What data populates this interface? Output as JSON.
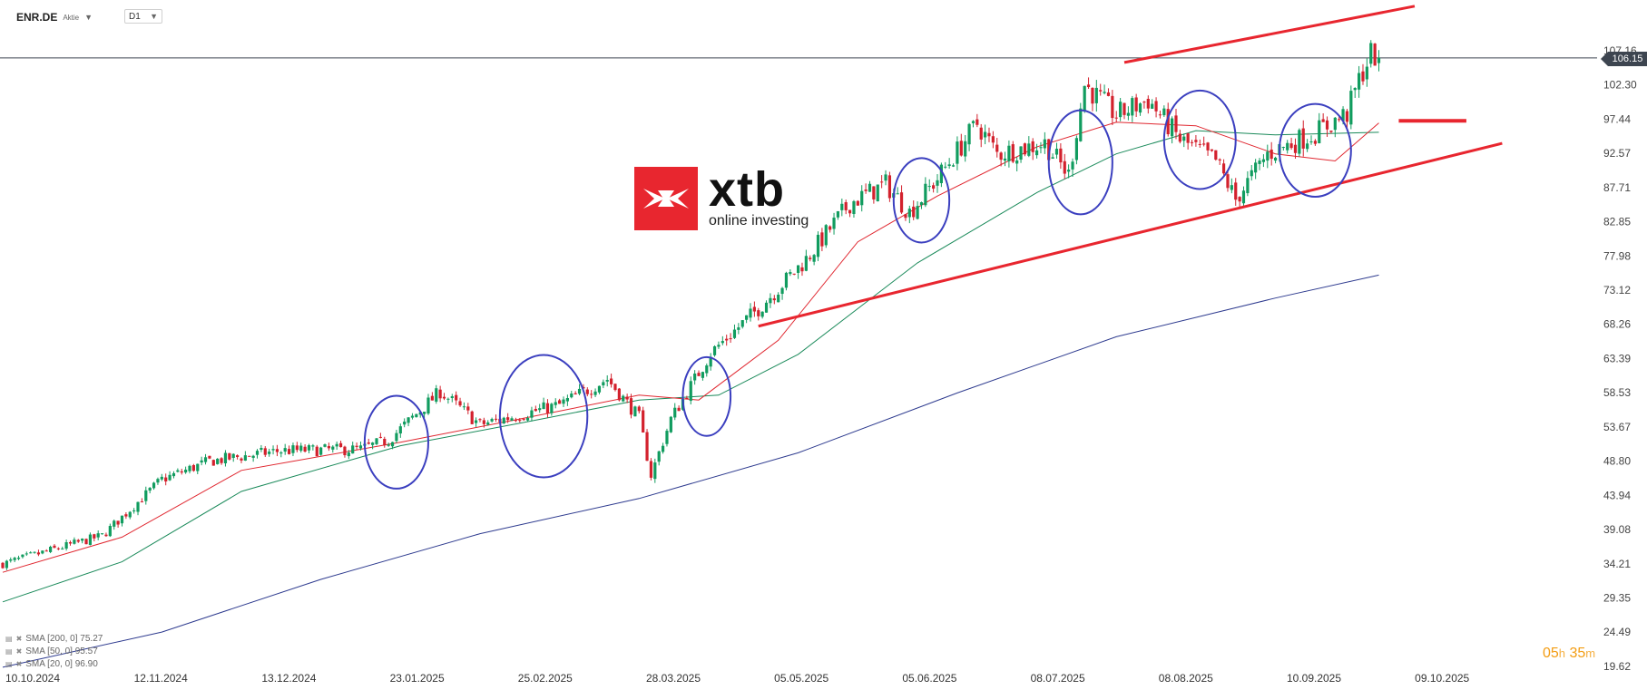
{
  "header": {
    "symbol": "ENR.DE",
    "type_label": "Aktie",
    "timeframe": "D1"
  },
  "logo": {
    "name": "xtb",
    "tagline": "online investing",
    "color": "#e8262f"
  },
  "price_tag": "106.15",
  "countdown": {
    "hours": "05",
    "h_unit": "h",
    "minutes": "35",
    "m_unit": "m"
  },
  "indicators": [
    {
      "label": "SMA  [200,  0]  75.27",
      "color": "#2e3b8f"
    },
    {
      "label": "SMA  [50,  0]  95.57",
      "color": "#1a8a5a"
    },
    {
      "label": "SMA  [20,  0]  96.90",
      "color": "#e0262f"
    }
  ],
  "colors": {
    "bull": "#119c5f",
    "bear": "#d3212d",
    "trendline": "#e8262f",
    "circle": "#3b3fbf",
    "sma200": "#2e3b8f",
    "sma50": "#1a8a5a",
    "sma20": "#e0262f"
  },
  "chart_data": {
    "type": "candlestick",
    "x_tick_labels": [
      "10.10.2024",
      "12.11.2024",
      "13.12.2024",
      "23.01.2025",
      "25.02.2025",
      "28.03.2025",
      "05.05.2025",
      "05.06.2025",
      "08.07.2025",
      "08.08.2025",
      "10.09.2025",
      "09.10.2025"
    ],
    "y_tick_labels": [
      "107.16",
      "102.30",
      "97.44",
      "92.57",
      "87.71",
      "82.85",
      "77.98",
      "73.12",
      "68.26",
      "63.39",
      "58.53",
      "53.67",
      "48.80",
      "43.94",
      "39.08",
      "34.21",
      "29.35",
      "24.49",
      "19.62"
    ],
    "ylim": [
      19.62,
      107.16
    ],
    "close_path": [
      {
        "t": 0,
        "v": 34.2
      },
      {
        "t": 25,
        "v": 38.2
      },
      {
        "t": 40,
        "v": 46.2
      },
      {
        "t": 52,
        "v": 48.8
      },
      {
        "t": 70,
        "v": 50.3
      },
      {
        "t": 90,
        "v": 50.5
      },
      {
        "t": 97,
        "v": 51.8
      },
      {
        "t": 110,
        "v": 58.7
      },
      {
        "t": 120,
        "v": 54.0
      },
      {
        "t": 140,
        "v": 56.8
      },
      {
        "t": 152,
        "v": 60.5
      },
      {
        "t": 160,
        "v": 55.0
      },
      {
        "t": 163,
        "v": 46.8
      },
      {
        "t": 168,
        "v": 54.8
      },
      {
        "t": 178,
        "v": 64.2
      },
      {
        "t": 190,
        "v": 70.5
      },
      {
        "t": 202,
        "v": 77.5
      },
      {
        "t": 213,
        "v": 85.5
      },
      {
        "t": 222,
        "v": 88.2
      },
      {
        "t": 228,
        "v": 84.2
      },
      {
        "t": 235,
        "v": 89.0
      },
      {
        "t": 245,
        "v": 96.8
      },
      {
        "t": 250,
        "v": 92.5
      },
      {
        "t": 262,
        "v": 94.0
      },
      {
        "t": 268,
        "v": 89.5
      },
      {
        "t": 272,
        "v": 102.3
      },
      {
        "t": 280,
        "v": 98.0
      },
      {
        "t": 288,
        "v": 100.2
      },
      {
        "t": 296,
        "v": 94.5
      },
      {
        "t": 305,
        "v": 91.5
      },
      {
        "t": 310,
        "v": 86.0
      },
      {
        "t": 318,
        "v": 92.5
      },
      {
        "t": 330,
        "v": 95.5
      },
      {
        "t": 338,
        "v": 98.2
      },
      {
        "t": 341,
        "v": 103.0
      },
      {
        "t": 344,
        "v": 106.8
      },
      {
        "t": 346,
        "v": 106.15
      }
    ],
    "sma200_path": [
      {
        "t": 0,
        "v": 19.5
      },
      {
        "t": 40,
        "v": 24.5
      },
      {
        "t": 80,
        "v": 32.0
      },
      {
        "t": 120,
        "v": 38.5
      },
      {
        "t": 160,
        "v": 43.5
      },
      {
        "t": 200,
        "v": 50.0
      },
      {
        "t": 240,
        "v": 58.5
      },
      {
        "t": 280,
        "v": 66.5
      },
      {
        "t": 320,
        "v": 72.0
      },
      {
        "t": 346,
        "v": 75.27
      }
    ],
    "sma50_path": [
      {
        "t": 0,
        "v": 28.8
      },
      {
        "t": 30,
        "v": 34.5
      },
      {
        "t": 60,
        "v": 44.5
      },
      {
        "t": 100,
        "v": 51.0
      },
      {
        "t": 130,
        "v": 54.2
      },
      {
        "t": 160,
        "v": 57.5
      },
      {
        "t": 180,
        "v": 58.2
      },
      {
        "t": 200,
        "v": 64.0
      },
      {
        "t": 230,
        "v": 77.0
      },
      {
        "t": 260,
        "v": 87.0
      },
      {
        "t": 280,
        "v": 92.5
      },
      {
        "t": 300,
        "v": 95.8
      },
      {
        "t": 320,
        "v": 95.2
      },
      {
        "t": 346,
        "v": 95.57
      }
    ],
    "sma20_path": [
      {
        "t": 0,
        "v": 33.0
      },
      {
        "t": 30,
        "v": 38.0
      },
      {
        "t": 60,
        "v": 47.5
      },
      {
        "t": 100,
        "v": 51.5
      },
      {
        "t": 130,
        "v": 54.8
      },
      {
        "t": 160,
        "v": 58.2
      },
      {
        "t": 175,
        "v": 57.5
      },
      {
        "t": 195,
        "v": 66.0
      },
      {
        "t": 215,
        "v": 80.0
      },
      {
        "t": 235,
        "v": 86.5
      },
      {
        "t": 260,
        "v": 93.5
      },
      {
        "t": 280,
        "v": 97.0
      },
      {
        "t": 300,
        "v": 96.5
      },
      {
        "t": 320,
        "v": 92.5
      },
      {
        "t": 335,
        "v": 91.5
      },
      {
        "t": 346,
        "v": 96.9
      }
    ],
    "trendlines": [
      {
        "name": "lower",
        "from": {
          "t": 190,
          "v": 68.0
        },
        "to": {
          "t": 377,
          "v": 94.0
        }
      },
      {
        "name": "upper",
        "from": {
          "t": 282,
          "v": 105.5
        },
        "to": {
          "t": 355,
          "v": 113.5
        }
      },
      {
        "name": "level",
        "from": {
          "t": 351,
          "v": 97.2
        },
        "to": {
          "t": 368,
          "v": 97.2
        }
      }
    ],
    "circles": [
      {
        "t": 99,
        "v": 51.5,
        "rt": 8,
        "rv": 6.6
      },
      {
        "t": 136,
        "v": 55.2,
        "rt": 11,
        "rv": 8.7
      },
      {
        "t": 177,
        "v": 58.0,
        "rt": 6,
        "rv": 5.6
      },
      {
        "t": 231,
        "v": 85.9,
        "rt": 7,
        "rv": 6.0
      },
      {
        "t": 271,
        "v": 91.3,
        "rt": 8,
        "rv": 7.4
      },
      {
        "t": 301,
        "v": 94.5,
        "rt": 9,
        "rv": 7.0
      },
      {
        "t": 330,
        "v": 93.0,
        "rt": 9,
        "rv": 6.6
      }
    ]
  }
}
